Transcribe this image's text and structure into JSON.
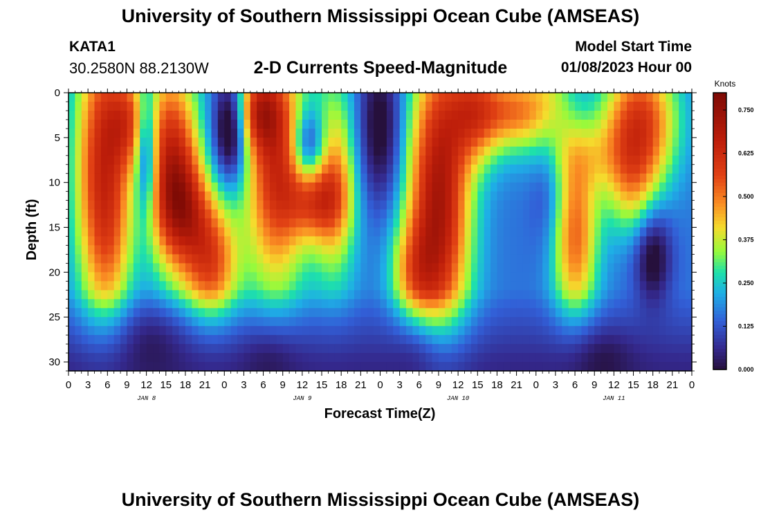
{
  "header": {
    "title": "University of Southern Mississippi Ocean Cube (AMSEAS)",
    "station_id": "KATA1",
    "coordinates": "30.2580N  88.2130W",
    "chart_subtitle": "2-D Currents Speed-Magnitude",
    "model_start_label": "Model Start Time",
    "model_start_value": "01/08/2023 Hour 00"
  },
  "footer": {
    "title": "University of Southern Mississippi Ocean Cube (AMSEAS)"
  },
  "chart_data": {
    "type": "heatmap",
    "title": "2-D Currents Speed-Magnitude",
    "xlabel": "Forecast Time(Z)",
    "ylabel": "Depth (ft)",
    "x_range_hours": [
      0,
      96
    ],
    "ylim": [
      0,
      31
    ],
    "y_inverted": true,
    "x_tick_labels": [
      "0",
      "3",
      "6",
      "9",
      "12",
      "15",
      "18",
      "21",
      "0",
      "3",
      "6",
      "9",
      "12",
      "15",
      "18",
      "21",
      "0",
      "3",
      "6",
      "9",
      "12",
      "15",
      "18",
      "21",
      "0",
      "3",
      "6",
      "9",
      "12",
      "15",
      "18",
      "21",
      "0"
    ],
    "y_ticks": [
      0,
      5,
      10,
      15,
      20,
      25,
      30
    ],
    "date_labels": [
      {
        "label": "JAN 8",
        "hour": 12
      },
      {
        "label": "JAN 9",
        "hour": 36
      },
      {
        "label": "JAN 10",
        "hour": 60
      },
      {
        "label": "JAN 11",
        "hour": 84
      }
    ],
    "colorbar": {
      "unit": "Knots",
      "min": 0.0,
      "max": 0.8,
      "tick_values": [
        0.0,
        0.125,
        0.25,
        0.375,
        0.5,
        0.625,
        0.75
      ],
      "tick_labels": [
        "0.000",
        "0.125",
        "0.250",
        "0.375",
        "0.500",
        "0.625",
        "0.750"
      ]
    },
    "blobs": [
      {
        "t": 5,
        "d": 8,
        "st": 3,
        "sd": 12,
        "a": 0.42
      },
      {
        "t": 7,
        "d": 16,
        "st": 2.5,
        "sd": 7,
        "a": 0.12
      },
      {
        "t": 9.5,
        "d": 3,
        "st": 2.5,
        "sd": 4,
        "a": 0.28
      },
      {
        "t": 16,
        "d": 8,
        "st": 3,
        "sd": 8,
        "a": 0.48
      },
      {
        "t": 22,
        "d": 19,
        "st": 3,
        "sd": 5,
        "a": 0.38
      },
      {
        "t": 18,
        "d": 13,
        "st": 3,
        "sd": 4,
        "a": 0.22
      },
      {
        "t": 32,
        "d": 8,
        "st": 3.5,
        "sd": 10,
        "a": 0.46
      },
      {
        "t": 29,
        "d": 2,
        "st": 2.5,
        "sd": 3,
        "a": 0.28
      },
      {
        "t": 41,
        "d": 10,
        "st": 2.5,
        "sd": 8,
        "a": 0.3
      },
      {
        "t": 38,
        "d": 12,
        "st": 3,
        "sd": 3,
        "a": 0.25
      },
      {
        "t": 57,
        "d": 12,
        "st": 3.5,
        "sd": 12,
        "a": 0.55
      },
      {
        "t": 53,
        "d": 20,
        "st": 2.5,
        "sd": 4,
        "a": 0.2
      },
      {
        "t": 63,
        "d": 2,
        "st": 3,
        "sd": 4,
        "a": 0.35
      },
      {
        "t": 69,
        "d": 2,
        "st": 3,
        "sd": 3,
        "a": 0.28
      },
      {
        "t": 78,
        "d": 16,
        "st": 2.5,
        "sd": 7,
        "a": 0.36
      },
      {
        "t": 74,
        "d": 1,
        "st": 2.5,
        "sd": 5,
        "a": 0.22
      },
      {
        "t": 88,
        "d": 3,
        "st": 4,
        "sd": 5,
        "a": 0.42
      },
      {
        "t": 87,
        "d": 11,
        "st": 3,
        "sd": 4,
        "a": 0.2
      },
      {
        "t": 80,
        "d": 7,
        "st": 5,
        "sd": 3,
        "a": 0.12
      }
    ],
    "dips": [
      {
        "t": 12,
        "d": 6,
        "st": 1.2,
        "sd": 5,
        "a": 0.3
      },
      {
        "t": 25,
        "d": 4,
        "st": 1.8,
        "sd": 4,
        "a": 0.3
      },
      {
        "t": 37,
        "d": 6,
        "st": 1.8,
        "sd": 3,
        "a": 0.25
      },
      {
        "t": 48,
        "d": 4,
        "st": 2.5,
        "sd": 6,
        "a": 0.2
      },
      {
        "t": 74,
        "d": 8,
        "st": 2,
        "sd": 6,
        "a": 0.12
      },
      {
        "t": 90,
        "d": 18,
        "st": 2,
        "sd": 4,
        "a": 0.2
      }
    ],
    "bottom_lows": [
      {
        "t": 13,
        "d": 28,
        "st": 4,
        "sd": 3,
        "a": 0.12
      },
      {
        "t": 31,
        "d": 30,
        "st": 3,
        "sd": 2.5,
        "a": 0.12
      },
      {
        "t": 54,
        "d": 29,
        "st": 2.5,
        "sd": 2.5,
        "a": 0.1
      },
      {
        "t": 82,
        "d": 30,
        "st": 3.5,
        "sd": 2.5,
        "a": 0.14
      }
    ]
  }
}
